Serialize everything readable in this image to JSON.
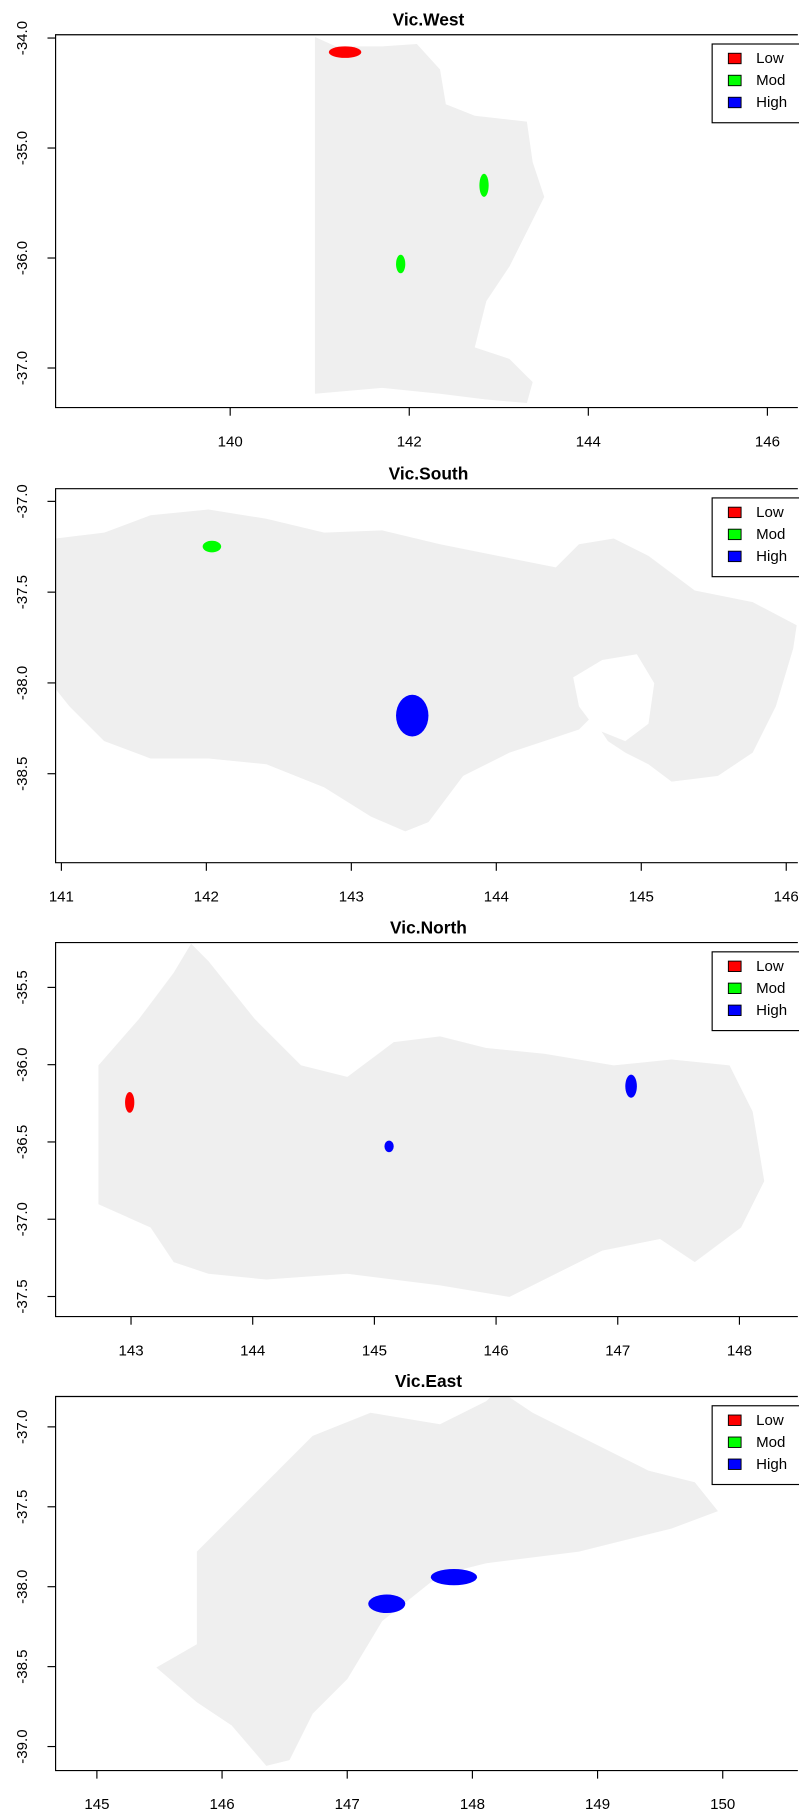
{
  "chart_data": [
    {
      "type": "raster",
      "title": "Vic.West",
      "xlim": [
        138.05,
        146.34
      ],
      "ylim": [
        -37.36,
        -33.97
      ],
      "xticks": [
        140,
        142,
        144,
        146
      ],
      "yticks": [
        {
          "value": -34,
          "label": "-34.0"
        },
        {
          "value": -35,
          "label": "-35.0"
        },
        {
          "value": -36,
          "label": "-36.0"
        },
        {
          "value": -37,
          "label": "-37.0"
        }
      ],
      "legend": "topright",
      "series": [
        {
          "name": "Low",
          "color": "#ff0000"
        },
        {
          "name": "Mod",
          "color": "#00ff00"
        },
        {
          "name": "High",
          "color": "#0000ff"
        }
      ]
    },
    {
      "type": "raster",
      "title": "Vic.South",
      "xlim": [
        140.96,
        146.08
      ],
      "ylim": [
        -38.99,
        -36.93
      ],
      "xticks": [
        141,
        142,
        143,
        144,
        145,
        146
      ],
      "yticks": [
        {
          "value": -37,
          "label": "-37.0"
        },
        -37.5,
        {
          "value": -38,
          "label": "-38.0"
        },
        -38.5
      ],
      "legend": "topright",
      "series": [
        {
          "name": "Low",
          "color": "#ff0000"
        },
        {
          "name": "Mod",
          "color": "#00ff00"
        },
        {
          "name": "High",
          "color": "#0000ff"
        }
      ]
    },
    {
      "type": "raster",
      "title": "Vic.North",
      "xlim": [
        142.38,
        148.48
      ],
      "ylim": [
        -37.63,
        -35.21
      ],
      "xticks": [
        143,
        144,
        145,
        146,
        147,
        148
      ],
      "yticks": [
        -35.5,
        {
          "value": -36,
          "label": "-36.0"
        },
        -36.5,
        {
          "value": -37,
          "label": "-37.0"
        },
        -37.5
      ],
      "legend": "topright",
      "series": [
        {
          "name": "Low",
          "color": "#ff0000"
        },
        {
          "name": "Mod",
          "color": "#00ff00"
        },
        {
          "name": "High",
          "color": "#0000ff"
        }
      ]
    },
    {
      "type": "raster",
      "title": "Vic.East",
      "xlim": [
        144.67,
        150.6
      ],
      "ylim": [
        -39.15,
        -36.81
      ],
      "xticks": [
        145,
        146,
        147,
        148,
        149,
        150
      ],
      "yticks": [
        {
          "value": -37,
          "label": "-37.0"
        },
        -37.5,
        {
          "value": -38,
          "label": "-38.0"
        },
        -38.5,
        {
          "value": -39,
          "label": "-39.0"
        }
      ],
      "legend": "topright",
      "series": [
        {
          "name": "Low",
          "color": "#ff0000"
        },
        {
          "name": "Mod",
          "color": "#00ff00"
        },
        {
          "name": "High",
          "color": "#0000ff"
        }
      ]
    }
  ]
}
